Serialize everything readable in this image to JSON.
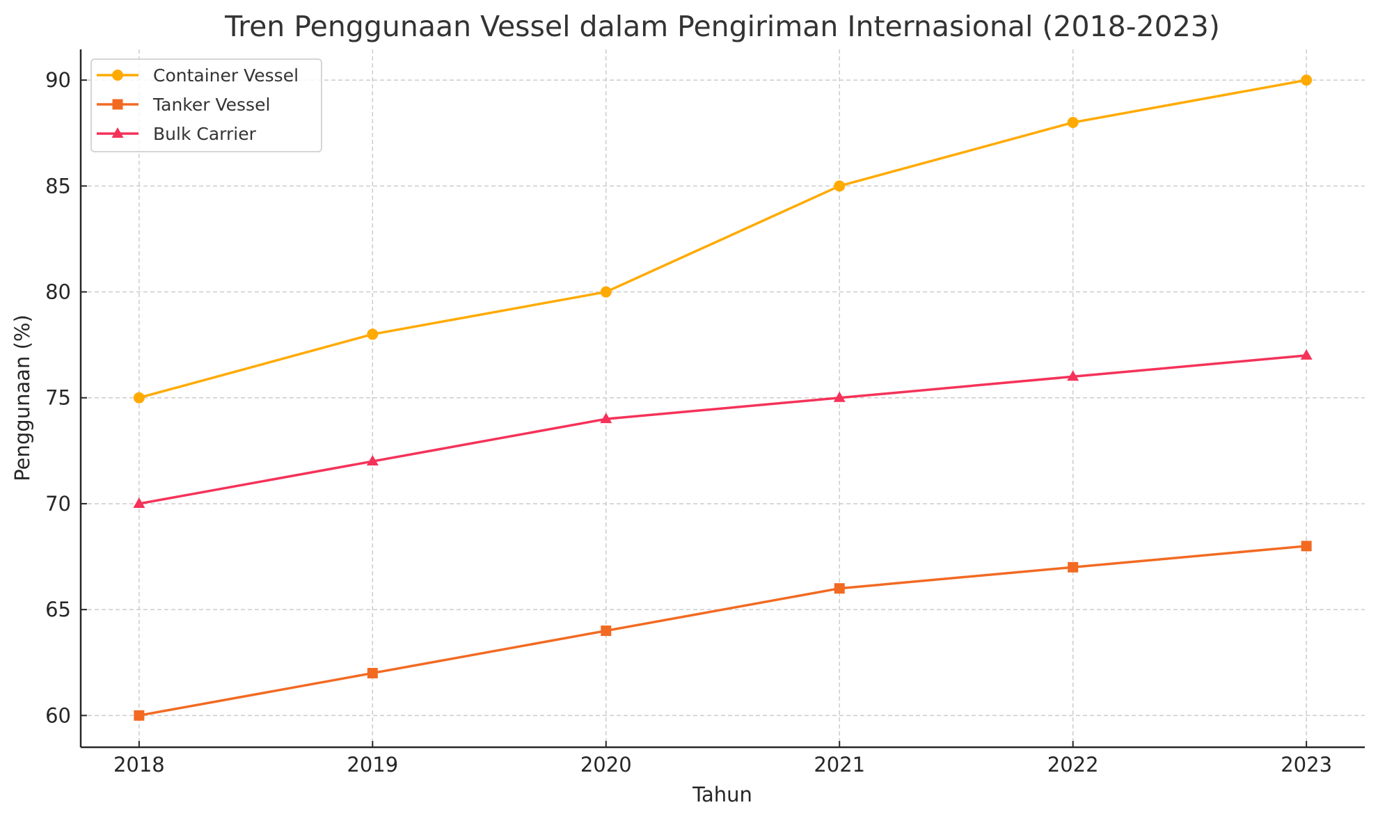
{
  "chart_data": {
    "type": "line",
    "title": "Tren Penggunaan Vessel dalam Pengiriman Internasional (2018-2023)",
    "xlabel": "Tahun",
    "ylabel": "Penggunaan (%)",
    "categories": [
      "2018",
      "2019",
      "2020",
      "2021",
      "2022",
      "2023"
    ],
    "x": [
      2018,
      2019,
      2020,
      2021,
      2022,
      2023
    ],
    "series": [
      {
        "name": "Container Vessel",
        "marker": "circle",
        "color": "#FFAA00",
        "values": [
          75,
          78,
          80,
          85,
          88,
          90
        ]
      },
      {
        "name": "Tanker Vessel",
        "marker": "square",
        "color": "#F26A22",
        "values": [
          60,
          62,
          64,
          66,
          67,
          68
        ]
      },
      {
        "name": "Bulk Carrier",
        "marker": "triangle",
        "color": "#F53259",
        "values": [
          70,
          72,
          74,
          75,
          76,
          77
        ]
      }
    ],
    "yticks": [
      "60",
      "65",
      "70",
      "75",
      "80",
      "85",
      "90"
    ],
    "ylim": [
      58.5,
      91.45
    ],
    "xlim": [
      2017.75,
      2023.25
    ],
    "grid": true,
    "legend_position": "upper left"
  }
}
